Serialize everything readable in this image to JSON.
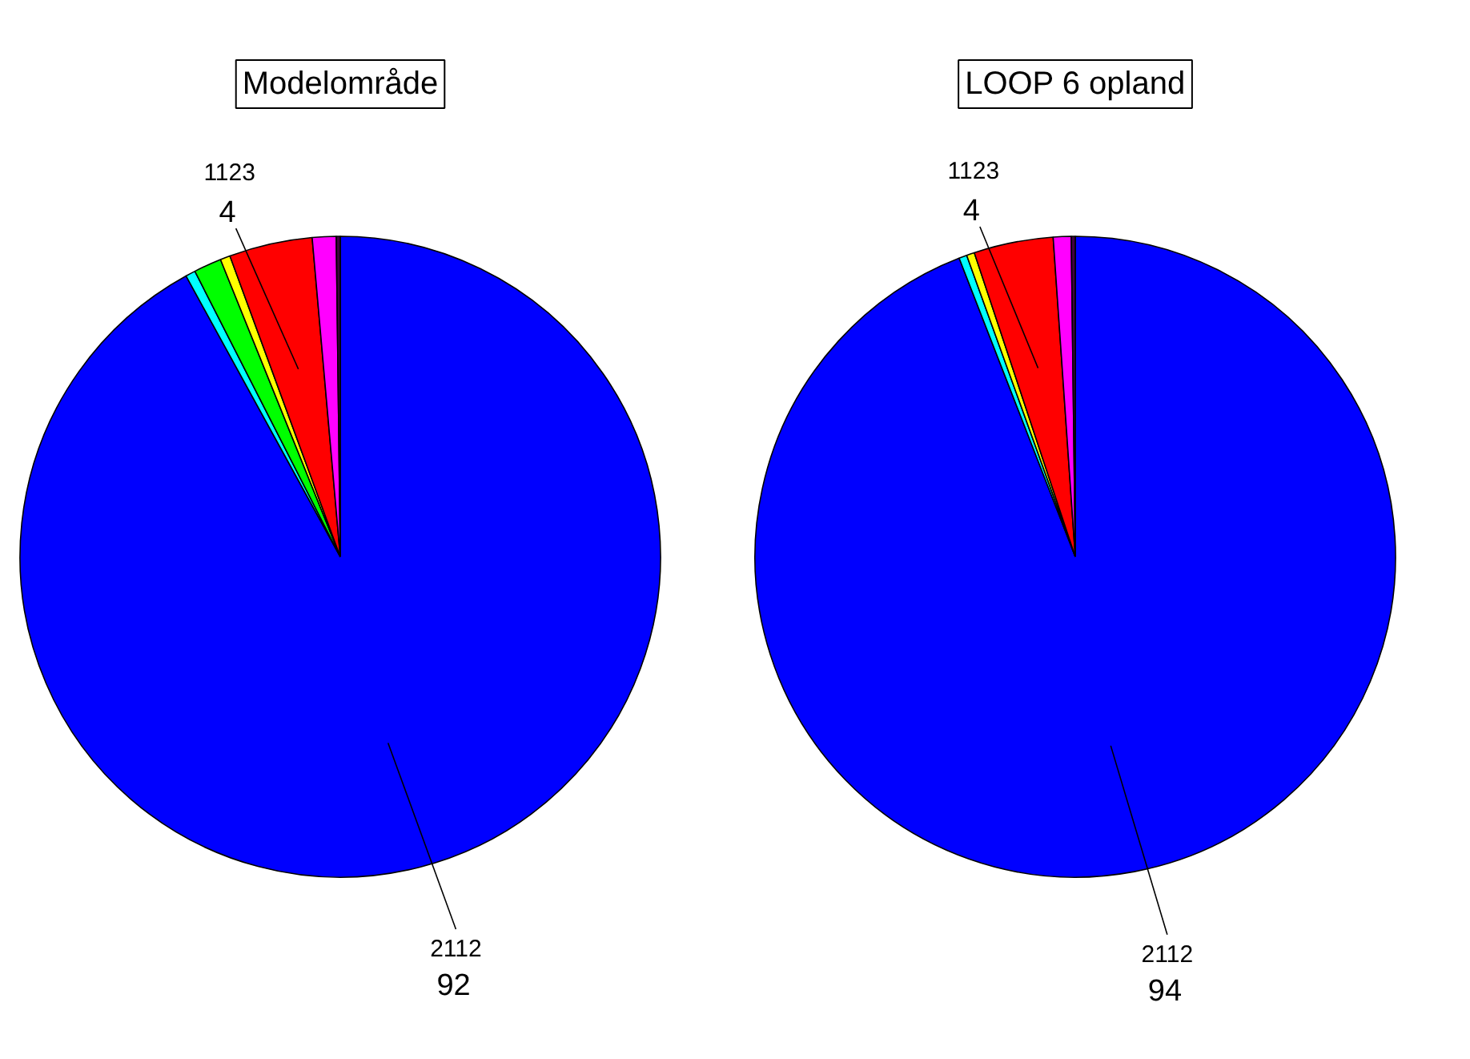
{
  "chart_data": [
    {
      "type": "pie",
      "title": "Modelområde",
      "categories": [
        "2112",
        null,
        null,
        null,
        "1123",
        null,
        null
      ],
      "values": [
        92,
        0.5,
        1.4,
        0.5,
        4.2,
        1.2,
        0.2
      ],
      "colors": [
        "#0000ff",
        "#00ffff",
        "#00ff00",
        "#ffff00",
        "#ff0000",
        "#ff00ff",
        "#400040"
      ],
      "value_labels": [
        "92",
        null,
        null,
        null,
        "4",
        null,
        null
      ]
    },
    {
      "type": "pie",
      "title": "LOOP 6 opland",
      "categories": [
        "2112",
        null,
        null,
        null,
        "1123",
        null,
        null
      ],
      "values": [
        94,
        0.4,
        null,
        0.4,
        4.0,
        0.9,
        0.2
      ],
      "colors": [
        "#0000ff",
        "#00ffff",
        "#00ff00",
        "#ffff00",
        "#ff0000",
        "#ff00ff",
        "#400040"
      ],
      "value_labels": [
        "94",
        null,
        null,
        null,
        "4",
        null,
        null
      ]
    }
  ]
}
